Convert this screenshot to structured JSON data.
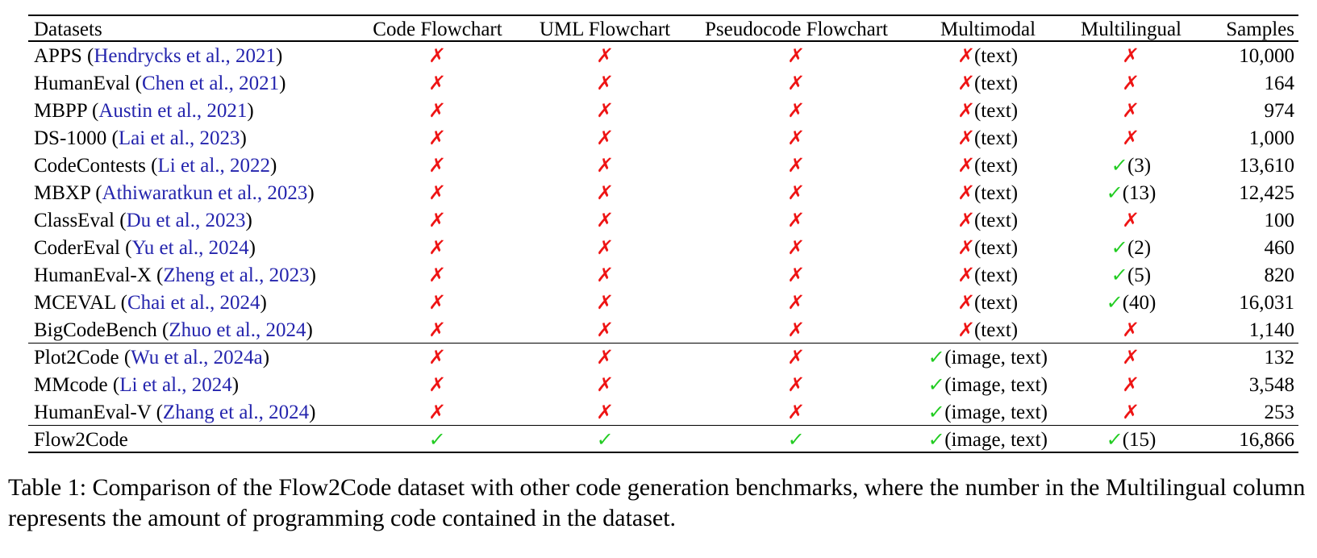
{
  "colors": {
    "cross": "#ee1414",
    "check": "#22cc22",
    "citation": "#2424ad",
    "text": "#000000",
    "rule": "#000000",
    "background": "#ffffff"
  },
  "table": {
    "columns": [
      {
        "id": "datasets",
        "label": "Datasets",
        "align": "left"
      },
      {
        "id": "code-flowchart",
        "label": "Code Flowchart",
        "align": "center"
      },
      {
        "id": "uml-flowchart",
        "label": "UML Flowchart",
        "align": "center"
      },
      {
        "id": "pseudocode-flowchart",
        "label": "Pseudocode Flowchart",
        "align": "center"
      },
      {
        "id": "multimodal",
        "label": "Multimodal",
        "align": "center"
      },
      {
        "id": "multilingual",
        "label": "Multilingual",
        "align": "center"
      },
      {
        "id": "samples",
        "label": "Samples",
        "align": "right"
      }
    ],
    "mark_glyphs": {
      "cross": "✗",
      "check": "✓"
    },
    "rows": [
      {
        "name": "APPS",
        "citation": "Hendrycks et al., 2021",
        "cells": [
          {
            "mark": "cross"
          },
          {
            "mark": "cross"
          },
          {
            "mark": "cross"
          },
          {
            "mark": "cross",
            "suffix": "(text)"
          },
          {
            "mark": "cross"
          }
        ],
        "samples": "10,000",
        "group_end": false
      },
      {
        "name": "HumanEval",
        "citation": "Chen et al., 2021",
        "cells": [
          {
            "mark": "cross"
          },
          {
            "mark": "cross"
          },
          {
            "mark": "cross"
          },
          {
            "mark": "cross",
            "suffix": "(text)"
          },
          {
            "mark": "cross"
          }
        ],
        "samples": "164",
        "group_end": false
      },
      {
        "name": "MBPP",
        "citation": "Austin et al., 2021",
        "cells": [
          {
            "mark": "cross"
          },
          {
            "mark": "cross"
          },
          {
            "mark": "cross"
          },
          {
            "mark": "cross",
            "suffix": "(text)"
          },
          {
            "mark": "cross"
          }
        ],
        "samples": "974",
        "group_end": false
      },
      {
        "name": "DS-1000",
        "citation": "Lai et al., 2023",
        "cells": [
          {
            "mark": "cross"
          },
          {
            "mark": "cross"
          },
          {
            "mark": "cross"
          },
          {
            "mark": "cross",
            "suffix": "(text)"
          },
          {
            "mark": "cross"
          }
        ],
        "samples": "1,000",
        "group_end": false
      },
      {
        "name": "CodeContests",
        "citation": "Li et al., 2022",
        "cells": [
          {
            "mark": "cross"
          },
          {
            "mark": "cross"
          },
          {
            "mark": "cross"
          },
          {
            "mark": "cross",
            "suffix": "(text)"
          },
          {
            "mark": "check",
            "suffix": "(3)"
          }
        ],
        "samples": "13,610",
        "group_end": false
      },
      {
        "name": "MBXP",
        "citation": "Athiwaratkun et al., 2023",
        "cells": [
          {
            "mark": "cross"
          },
          {
            "mark": "cross"
          },
          {
            "mark": "cross"
          },
          {
            "mark": "cross",
            "suffix": "(text)"
          },
          {
            "mark": "check",
            "suffix": "(13)"
          }
        ],
        "samples": "12,425",
        "group_end": false
      },
      {
        "name": "ClassEval",
        "citation": "Du et al., 2023",
        "cells": [
          {
            "mark": "cross"
          },
          {
            "mark": "cross"
          },
          {
            "mark": "cross"
          },
          {
            "mark": "cross",
            "suffix": "(text)"
          },
          {
            "mark": "cross"
          }
        ],
        "samples": "100",
        "group_end": false
      },
      {
        "name": "CoderEval",
        "citation": "Yu et al., 2024",
        "cells": [
          {
            "mark": "cross"
          },
          {
            "mark": "cross"
          },
          {
            "mark": "cross"
          },
          {
            "mark": "cross",
            "suffix": "(text)"
          },
          {
            "mark": "check",
            "suffix": "(2)"
          }
        ],
        "samples": "460",
        "group_end": false
      },
      {
        "name": "HumanEval-X",
        "citation": "Zheng et al., 2023",
        "cells": [
          {
            "mark": "cross"
          },
          {
            "mark": "cross"
          },
          {
            "mark": "cross"
          },
          {
            "mark": "cross",
            "suffix": "(text)"
          },
          {
            "mark": "check",
            "suffix": "(5)"
          }
        ],
        "samples": "820",
        "group_end": false
      },
      {
        "name": "MCEVAL",
        "citation": "Chai et al., 2024",
        "cells": [
          {
            "mark": "cross"
          },
          {
            "mark": "cross"
          },
          {
            "mark": "cross"
          },
          {
            "mark": "cross",
            "suffix": "(text)"
          },
          {
            "mark": "check",
            "suffix": "(40)"
          }
        ],
        "samples": "16,031",
        "group_end": false
      },
      {
        "name": "BigCodeBench",
        "citation": "Zhuo et al., 2024",
        "cells": [
          {
            "mark": "cross"
          },
          {
            "mark": "cross"
          },
          {
            "mark": "cross"
          },
          {
            "mark": "cross",
            "suffix": "(text)"
          },
          {
            "mark": "cross"
          }
        ],
        "samples": "1,140",
        "group_end": true
      },
      {
        "name": "Plot2Code",
        "citation": "Wu et al., 2024a",
        "cells": [
          {
            "mark": "cross"
          },
          {
            "mark": "cross"
          },
          {
            "mark": "cross"
          },
          {
            "mark": "check",
            "suffix": "(image, text)"
          },
          {
            "mark": "cross"
          }
        ],
        "samples": "132",
        "group_end": false
      },
      {
        "name": "MMcode",
        "citation": "Li et al., 2024",
        "cells": [
          {
            "mark": "cross"
          },
          {
            "mark": "cross"
          },
          {
            "mark": "cross"
          },
          {
            "mark": "check",
            "suffix": "(image, text)"
          },
          {
            "mark": "cross"
          }
        ],
        "samples": "3,548",
        "group_end": false
      },
      {
        "name": "HumanEval-V",
        "citation": "Zhang et al., 2024",
        "cells": [
          {
            "mark": "cross"
          },
          {
            "mark": "cross"
          },
          {
            "mark": "cross"
          },
          {
            "mark": "check",
            "suffix": "(image, text)"
          },
          {
            "mark": "cross"
          }
        ],
        "samples": "253",
        "group_end": true
      },
      {
        "name": "Flow2Code",
        "citation": null,
        "cells": [
          {
            "mark": "check"
          },
          {
            "mark": "check"
          },
          {
            "mark": "check"
          },
          {
            "mark": "check",
            "suffix": "(image, text)"
          },
          {
            "mark": "check",
            "suffix": "(15)"
          }
        ],
        "samples": "16,866",
        "group_end": false
      }
    ]
  },
  "caption": "Table 1: Comparison of the Flow2Code dataset with other code generation benchmarks, where the number in the Multilingual column represents the amount of programming code contained in the dataset."
}
